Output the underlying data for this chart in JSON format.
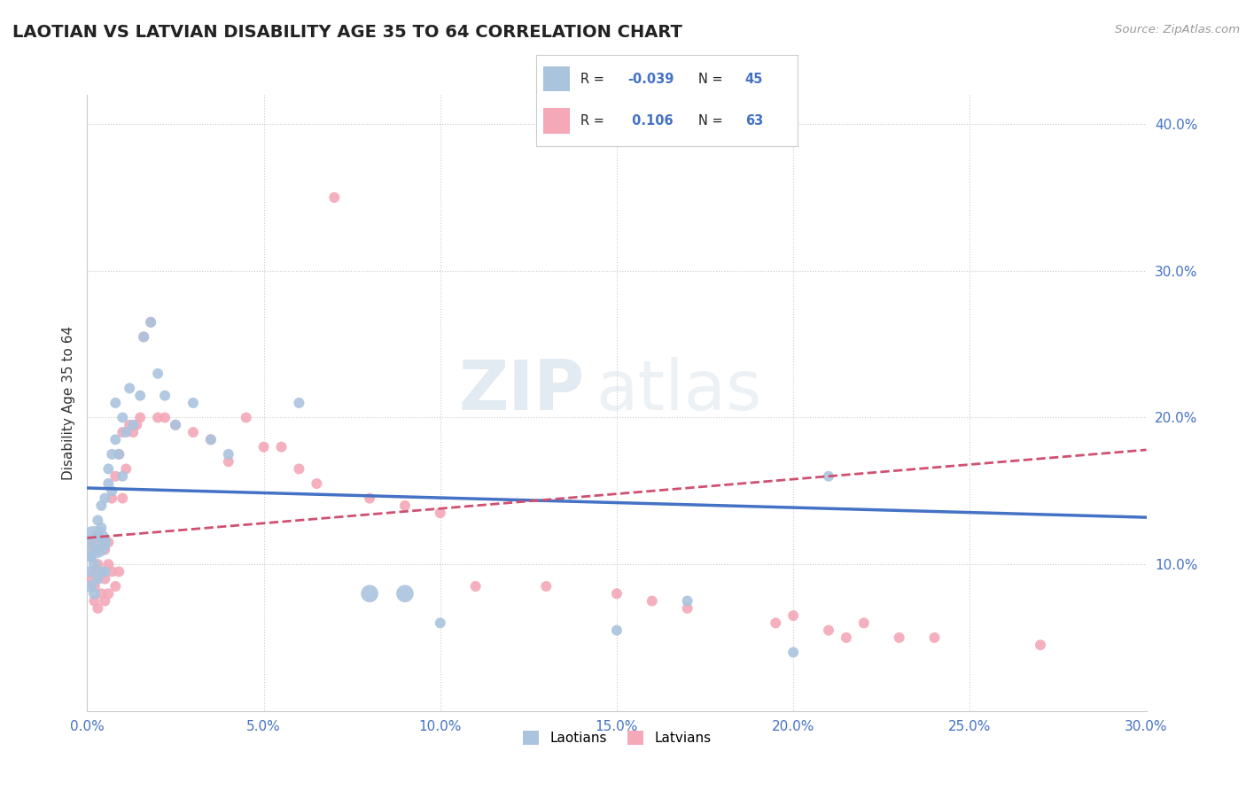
{
  "title": "LAOTIAN VS LATVIAN DISABILITY AGE 35 TO 64 CORRELATION CHART",
  "source": "Source: ZipAtlas.com",
  "ylabel": "Disability Age 35 to 64",
  "xlim": [
    0.0,
    0.3
  ],
  "ylim": [
    0.0,
    0.42
  ],
  "xticks": [
    0.0,
    0.05,
    0.1,
    0.15,
    0.2,
    0.25,
    0.3
  ],
  "xticklabels": [
    "0.0%",
    "5.0%",
    "10.0%",
    "15.0%",
    "20.0%",
    "25.0%",
    "30.0%"
  ],
  "yticks_right": [
    0.1,
    0.2,
    0.3,
    0.4
  ],
  "yticklabels_right": [
    "10.0%",
    "20.0%",
    "30.0%",
    "40.0%"
  ],
  "grid_color": "#cccccc",
  "background_color": "#ffffff",
  "laotian_color": "#aac4de",
  "latvian_color": "#f4a8b8",
  "laotian_line_color": "#4472c4",
  "latvian_line_color": "#d05070",
  "R_laotian": -0.039,
  "N_laotian": 45,
  "R_latvian": 0.106,
  "N_latvian": 63,
  "legend_labels": [
    "Laotians",
    "Latvians"
  ],
  "watermark_zip": "ZIP",
  "watermark_atlas": "atlas",
  "lao_trend_x": [
    0.0,
    0.3
  ],
  "lao_trend_y": [
    0.152,
    0.132
  ],
  "lat_trend_x": [
    0.0,
    0.3
  ],
  "lat_trend_y": [
    0.118,
    0.178
  ],
  "laotian_x": [
    0.001,
    0.001,
    0.001,
    0.002,
    0.002,
    0.002,
    0.003,
    0.003,
    0.003,
    0.003,
    0.004,
    0.004,
    0.004,
    0.005,
    0.005,
    0.005,
    0.006,
    0.006,
    0.007,
    0.007,
    0.008,
    0.008,
    0.009,
    0.01,
    0.01,
    0.011,
    0.012,
    0.013,
    0.015,
    0.016,
    0.018,
    0.02,
    0.022,
    0.025,
    0.03,
    0.035,
    0.04,
    0.06,
    0.08,
    0.09,
    0.1,
    0.15,
    0.17,
    0.2,
    0.21
  ],
  "laotian_y": [
    0.085,
    0.095,
    0.105,
    0.08,
    0.1,
    0.115,
    0.09,
    0.11,
    0.13,
    0.12,
    0.095,
    0.14,
    0.125,
    0.095,
    0.115,
    0.145,
    0.165,
    0.155,
    0.15,
    0.175,
    0.21,
    0.185,
    0.175,
    0.2,
    0.16,
    0.19,
    0.22,
    0.195,
    0.215,
    0.255,
    0.265,
    0.23,
    0.215,
    0.195,
    0.21,
    0.185,
    0.175,
    0.21,
    0.08,
    0.08,
    0.06,
    0.055,
    0.075,
    0.04,
    0.16
  ],
  "laotian_sizes": [
    40,
    35,
    30,
    35,
    35,
    280,
    30,
    30,
    30,
    30,
    30,
    30,
    30,
    30,
    30,
    30,
    30,
    30,
    30,
    30,
    30,
    30,
    30,
    30,
    30,
    30,
    30,
    30,
    30,
    30,
    30,
    30,
    30,
    30,
    30,
    30,
    30,
    30,
    80,
    80,
    30,
    30,
    30,
    30,
    30
  ],
  "latvian_x": [
    0.001,
    0.001,
    0.001,
    0.002,
    0.002,
    0.002,
    0.002,
    0.003,
    0.003,
    0.003,
    0.003,
    0.004,
    0.004,
    0.004,
    0.005,
    0.005,
    0.005,
    0.006,
    0.006,
    0.006,
    0.007,
    0.007,
    0.008,
    0.008,
    0.009,
    0.009,
    0.01,
    0.01,
    0.011,
    0.012,
    0.013,
    0.014,
    0.015,
    0.016,
    0.018,
    0.02,
    0.022,
    0.025,
    0.03,
    0.035,
    0.04,
    0.045,
    0.05,
    0.055,
    0.06,
    0.065,
    0.07,
    0.08,
    0.09,
    0.1,
    0.11,
    0.13,
    0.15,
    0.16,
    0.17,
    0.195,
    0.2,
    0.21,
    0.215,
    0.22,
    0.23,
    0.24,
    0.27
  ],
  "latvian_y": [
    0.09,
    0.105,
    0.115,
    0.075,
    0.085,
    0.095,
    0.11,
    0.07,
    0.09,
    0.1,
    0.12,
    0.08,
    0.095,
    0.115,
    0.075,
    0.09,
    0.11,
    0.08,
    0.1,
    0.115,
    0.095,
    0.145,
    0.085,
    0.16,
    0.095,
    0.175,
    0.145,
    0.19,
    0.165,
    0.195,
    0.19,
    0.195,
    0.2,
    0.255,
    0.265,
    0.2,
    0.2,
    0.195,
    0.19,
    0.185,
    0.17,
    0.2,
    0.18,
    0.18,
    0.165,
    0.155,
    0.35,
    0.145,
    0.14,
    0.135,
    0.085,
    0.085,
    0.08,
    0.075,
    0.07,
    0.06,
    0.065,
    0.055,
    0.05,
    0.06,
    0.05,
    0.05,
    0.045
  ],
  "latvian_sizes": [
    30,
    30,
    30,
    30,
    35,
    30,
    30,
    30,
    30,
    30,
    30,
    30,
    30,
    30,
    30,
    30,
    30,
    30,
    30,
    30,
    30,
    30,
    30,
    30,
    30,
    30,
    30,
    30,
    30,
    30,
    30,
    30,
    30,
    30,
    30,
    30,
    30,
    30,
    30,
    30,
    30,
    30,
    30,
    30,
    30,
    30,
    30,
    30,
    30,
    30,
    30,
    30,
    30,
    30,
    30,
    30,
    30,
    30,
    30,
    30,
    30,
    30,
    30
  ]
}
